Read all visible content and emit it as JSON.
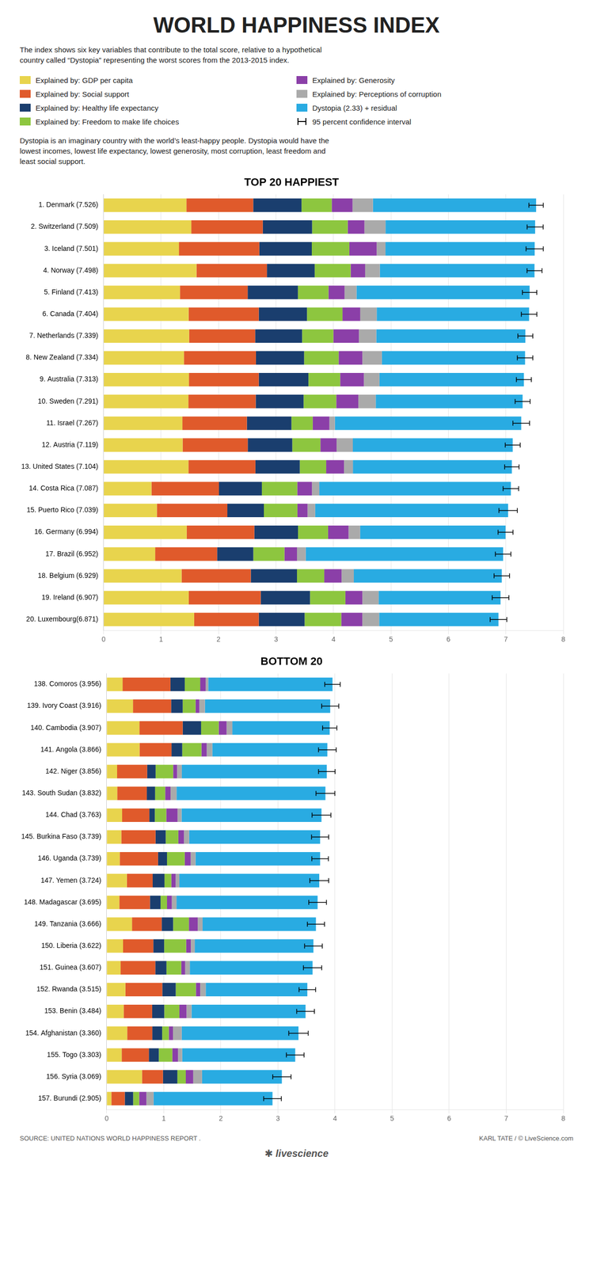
{
  "title": "WORLD HAPPINESS INDEX",
  "subtitle": "The index shows six key variables that contribute to the total score, relative to a hypothetical\ncountry called “Dystopia” representing the worst scores from the 2013-2015 index.",
  "annotations": [
    "Dystopia is an imaginary country with the world’s least-happy people. Dystopia would have the\nlowest incomes, lowest life expectancy, lowest generosity, most corruption, least freedom and\nleast social support.",
    "SOURCE: UNITED NATIONS WORLD HAPPINESS REPORT .",
    "KARL TATE / © LiveScience.com",
    "✱ livescience"
  ],
  "chart_data": [
    {
      "type": "bar",
      "title": "TOP 20 HAPPIEST",
      "orientation": "horizontal",
      "stacked": true,
      "grid": true,
      "legend": "top",
      "categories": [
        "1. Denmark (7.526)",
        "2. Switzerland (7.509)",
        "3. Iceland (7.501)",
        "4. Norway (7.498)",
        "5. Finland (7.413)",
        "6. Canada (7.404)",
        "7. Netherlands (7.339)",
        "8. New Zealand (7.334)",
        "9. Australia (7.313)",
        "10. Sweden (7.291)",
        "11. Israel (7.267)",
        "12. Austria (7.119)",
        "13. United States (7.104)",
        "14. Costa Rica (7.087)",
        "15. Puerto Rico (7.039)",
        "16. Germany (6.994)",
        "17. Brazil (6.952)",
        "18. Belgium (6.929)",
        "19. Ireland (6.907)",
        "20. Luxembourg(6.871)"
      ],
      "series": [
        {
          "name": "Explained by: GDP per capita",
          "color": "#E8D44D",
          "values": [
            1.441,
            1.526,
            1.311,
            1.616,
            1.329,
            1.479,
            1.488,
            1.398,
            1.484,
            1.475,
            1.371,
            1.375,
            1.476,
            0.833,
            0.927,
            1.446,
            0.898,
            1.357,
            1.481,
            1.576
          ]
        },
        {
          "name": "Explained by: Social support",
          "color": "#E05A2B",
          "values": [
            1.162,
            1.244,
            1.398,
            1.226,
            1.178,
            1.221,
            1.149,
            1.253,
            1.216,
            1.172,
            1.122,
            1.133,
            1.166,
            1.174,
            1.226,
            1.177,
            1.077,
            1.204,
            1.253,
            1.124
          ]
        },
        {
          "name": "Explained by: Healthy life expectancy",
          "color": "#1A3E6E",
          "values": [
            0.841,
            0.858,
            0.914,
            0.831,
            0.874,
            0.839,
            0.817,
            0.838,
            0.864,
            0.833,
            0.775,
            0.775,
            0.772,
            0.747,
            0.636,
            0.76,
            0.63,
            0.804,
            0.858,
            0.798
          ]
        },
        {
          "name": "Explained by: Freedom to make life choices",
          "color": "#8DC63F",
          "values": [
            0.526,
            0.62,
            0.653,
            0.626,
            0.532,
            0.618,
            0.544,
            0.601,
            0.552,
            0.568,
            0.371,
            0.489,
            0.459,
            0.616,
            0.584,
            0.523,
            0.542,
            0.474,
            0.615,
            0.637
          ]
        },
        {
          "name": "Explained by: Generosity",
          "color": "#8B3FA8",
          "values": [
            0.362,
            0.291,
            0.476,
            0.252,
            0.28,
            0.308,
            0.445,
            0.413,
            0.413,
            0.384,
            0.29,
            0.282,
            0.31,
            0.256,
            0.176,
            0.356,
            0.218,
            0.302,
            0.296,
            0.367
          ]
        },
        {
          "name": "Explained by: Perceptions of corruption",
          "color": "#AAAAAA",
          "values": [
            0.355,
            0.367,
            0.153,
            0.256,
            0.208,
            0.287,
            0.302,
            0.34,
            0.271,
            0.303,
            0.096,
            0.283,
            0.155,
            0.127,
            0.133,
            0.201,
            0.153,
            0.213,
            0.283,
            0.293
          ]
        },
        {
          "name": "Dystopia (2.33) + residual",
          "color": "#29ABE2",
          "values": [
            2.839,
            2.603,
            2.596,
            2.691,
            3.012,
            2.652,
            2.594,
            2.491,
            2.513,
            2.556,
            3.242,
            2.782,
            2.766,
            3.334,
            3.357,
            2.531,
            3.434,
            2.575,
            2.121,
            2.076
          ]
        }
      ],
      "error_name": "95 percent confidence interval",
      "errors": [
        0.125,
        0.14,
        0.15,
        0.13,
        0.125,
        0.135,
        0.13,
        0.135,
        0.13,
        0.13,
        0.145,
        0.13,
        0.125,
        0.135,
        0.16,
        0.13,
        0.135,
        0.135,
        0.145,
        0.145
      ],
      "xlim": [
        0,
        8
      ],
      "xticks": [
        0,
        1,
        2,
        3,
        4,
        5,
        6,
        7,
        8
      ]
    },
    {
      "type": "bar",
      "title": "BOTTOM 20",
      "orientation": "horizontal",
      "stacked": true,
      "grid": true,
      "categories": [
        "138. Comoros (3.956)",
        "139. Ivory Coast (3.916)",
        "140. Cambodia (3.907)",
        "141. Angola (3.866)",
        "142. Niger (3.856)",
        "143. South Sudan (3.832)",
        "144. Chad (3.763)",
        "145. Burkina Faso (3.739)",
        "146. Uganda (3.739)",
        "147. Yemen (3.724)",
        "148. Madagascar (3.695)",
        "149. Tanzania (3.666)",
        "150. Liberia (3.622)",
        "151. Guinea (3.607)",
        "152. Rwanda (3.515)",
        "153. Benin (3.484)",
        "154. Afghanistan (3.360)",
        "155. Togo (3.303)",
        "156. Syria (3.069)",
        "157. Burundi (2.905)"
      ],
      "series": [
        {
          "color": "#E8D44D",
          "values": [
            0.279,
            0.461,
            0.574,
            0.576,
            0.183,
            0.185,
            0.27,
            0.256,
            0.229,
            0.354,
            0.221,
            0.444,
            0.287,
            0.244,
            0.328,
            0.298,
            0.359,
            0.263,
            0.619,
            0.082
          ]
        },
        {
          "color": "#E05A2B",
          "values": [
            0.838,
            0.668,
            0.758,
            0.56,
            0.526,
            0.518,
            0.477,
            0.6,
            0.671,
            0.452,
            0.537,
            0.52,
            0.53,
            0.608,
            0.646,
            0.499,
            0.44,
            0.476,
            0.367,
            0.235
          ]
        },
        {
          "color": "#1A3E6E",
          "values": [
            0.251,
            0.203,
            0.322,
            0.187,
            0.148,
            0.145,
            0.096,
            0.178,
            0.157,
            0.207,
            0.186,
            0.2,
            0.19,
            0.195,
            0.236,
            0.212,
            0.173,
            0.174,
            0.252,
            0.147
          ]
        },
        {
          "color": "#8DC63F",
          "values": [
            0.27,
            0.225,
            0.309,
            0.337,
            0.307,
            0.177,
            0.201,
            0.221,
            0.31,
            0.119,
            0.113,
            0.276,
            0.385,
            0.259,
            0.353,
            0.264,
            0.116,
            0.237,
            0.148,
            0.105
          ]
        },
        {
          "color": "#8B3FA8",
          "values": [
            0.097,
            0.067,
            0.138,
            0.093,
            0.07,
            0.093,
            0.198,
            0.099,
            0.104,
            0.077,
            0.084,
            0.155,
            0.082,
            0.069,
            0.075,
            0.126,
            0.073,
            0.1,
            0.129,
            0.127
          ]
        },
        {
          "color": "#AAAAAA",
          "values": [
            0.044,
            0.097,
            0.1,
            0.098,
            0.082,
            0.106,
            0.07,
            0.09,
            0.085,
            0.065,
            0.082,
            0.085,
            0.069,
            0.082,
            0.097,
            0.088,
            0.154,
            0.073,
            0.156,
            0.126
          ]
        },
        {
          "color": "#29ABE2",
          "values": [
            2.177,
            2.195,
            1.706,
            2.015,
            2.54,
            2.608,
            2.451,
            2.295,
            2.183,
            2.45,
            2.472,
            1.986,
            2.079,
            2.15,
            1.78,
            1.997,
            2.045,
            1.98,
            1.398,
            2.083
          ]
        }
      ],
      "errors": [
        0.135,
        0.15,
        0.125,
        0.155,
        0.145,
        0.165,
        0.165,
        0.15,
        0.145,
        0.165,
        0.155,
        0.15,
        0.155,
        0.16,
        0.145,
        0.155,
        0.17,
        0.155,
        0.16,
        0.155
      ],
      "xlim": [
        0,
        8
      ],
      "xticks": [
        0,
        1,
        2,
        3,
        4,
        5,
        6,
        7,
        8
      ]
    }
  ]
}
